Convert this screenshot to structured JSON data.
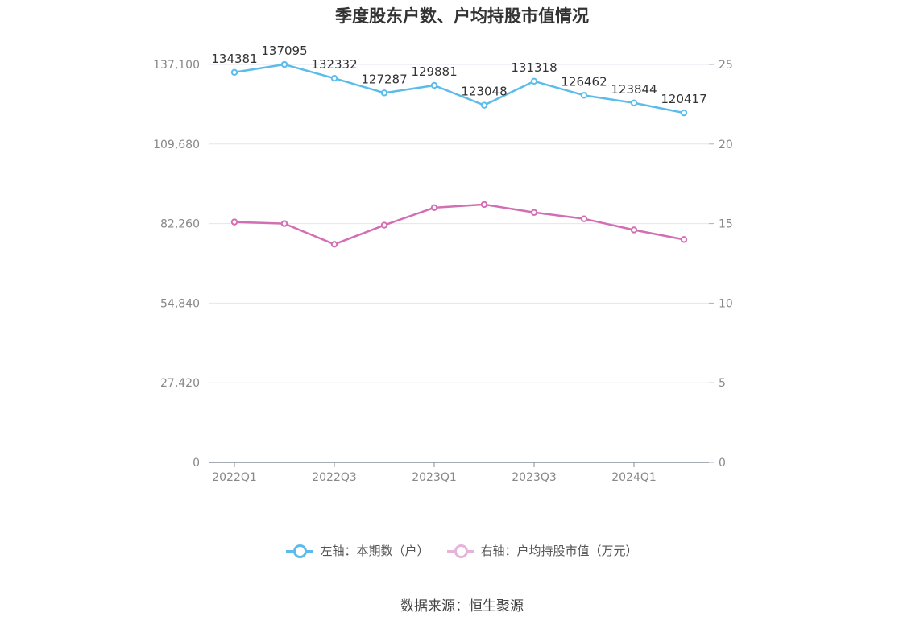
{
  "title": "季度股东户数、户均持股市值情况",
  "source": "数据来源：恒生聚源",
  "colors": {
    "left_series": "#5bbcec",
    "right_series": "#d36eb5",
    "grid": "#e3e6ef",
    "axis": "#8a8f99"
  },
  "legend": [
    {
      "label": "左轴：本期数（户）"
    },
    {
      "label": "右轴：户均持股市值（万元）"
    }
  ],
  "chart_data": {
    "type": "line",
    "x": [
      "2022Q1",
      "2022Q2",
      "2022Q3",
      "2022Q4",
      "2023Q1",
      "2023Q2",
      "2023Q3",
      "2023Q4",
      "2024Q1",
      "2024Q2"
    ],
    "x_tick_labels": [
      "2022Q1",
      "2022Q3",
      "2023Q1",
      "2023Q3",
      "2024Q1"
    ],
    "left_axis": {
      "ticks": [
        "0",
        "27,420",
        "54,840",
        "82,260",
        "109,680",
        "137,100"
      ],
      "ylim": [
        0,
        137100
      ]
    },
    "right_axis": {
      "ticks": [
        "0",
        "5",
        "10",
        "15",
        "20",
        "25"
      ],
      "ylim": [
        0,
        25
      ]
    },
    "series": [
      {
        "name": "左轴：本期数（户）",
        "axis": "left",
        "values": [
          134381,
          137095,
          132332,
          127287,
          129881,
          123048,
          131318,
          126462,
          123844,
          120417
        ],
        "labels": [
          "134381",
          "137095",
          "132332",
          "127287",
          "129881",
          "123048",
          "131318",
          "126462",
          "123844",
          "120417"
        ]
      },
      {
        "name": "右轴：户均持股市值（万元）",
        "axis": "right",
        "values": [
          15.1,
          15.0,
          13.7,
          14.9,
          16.0,
          16.2,
          15.7,
          15.3,
          14.6,
          14.0
        ]
      }
    ],
    "grid": true,
    "legend_position": "bottom"
  }
}
